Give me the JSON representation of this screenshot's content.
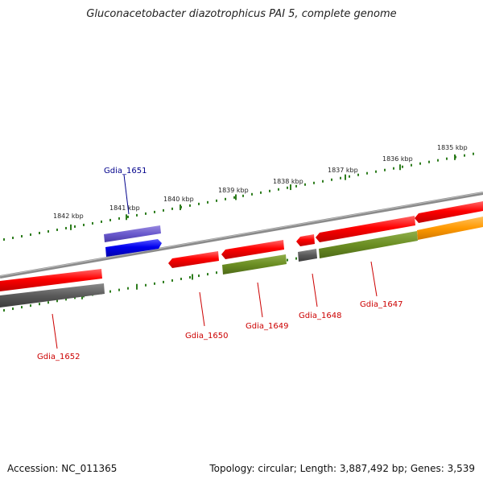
{
  "title": "Gluconacetobacter diazotrophicus PAI 5, complete genome",
  "footer": {
    "accession": "Accession: NC_011365",
    "summary": "Topology: circular; Length: 3,887,492 bp; Genes: 3,539"
  },
  "ruler_labels": [
    "1842 kbp",
    "1841 kbp",
    "1840 kbp",
    "1839 kbp",
    "1838 kbp",
    "1837 kbp",
    "1836 kbp",
    "1835 kbp"
  ],
  "genes": [
    {
      "id": "gdia-1651",
      "label": "Gdia_1651",
      "color": "#00008b"
    },
    {
      "id": "gdia-1652",
      "label": "Gdia_1652",
      "color": "#cc0000"
    },
    {
      "id": "gdia-1650",
      "label": "Gdia_1650",
      "color": "#cc0000"
    },
    {
      "id": "gdia-1649",
      "label": "Gdia_1649",
      "color": "#cc0000"
    },
    {
      "id": "gdia-1648",
      "label": "Gdia_1648",
      "color": "#cc0000"
    },
    {
      "id": "gdia-1647",
      "label": "Gdia_1647",
      "color": "#cc0000"
    }
  ]
}
